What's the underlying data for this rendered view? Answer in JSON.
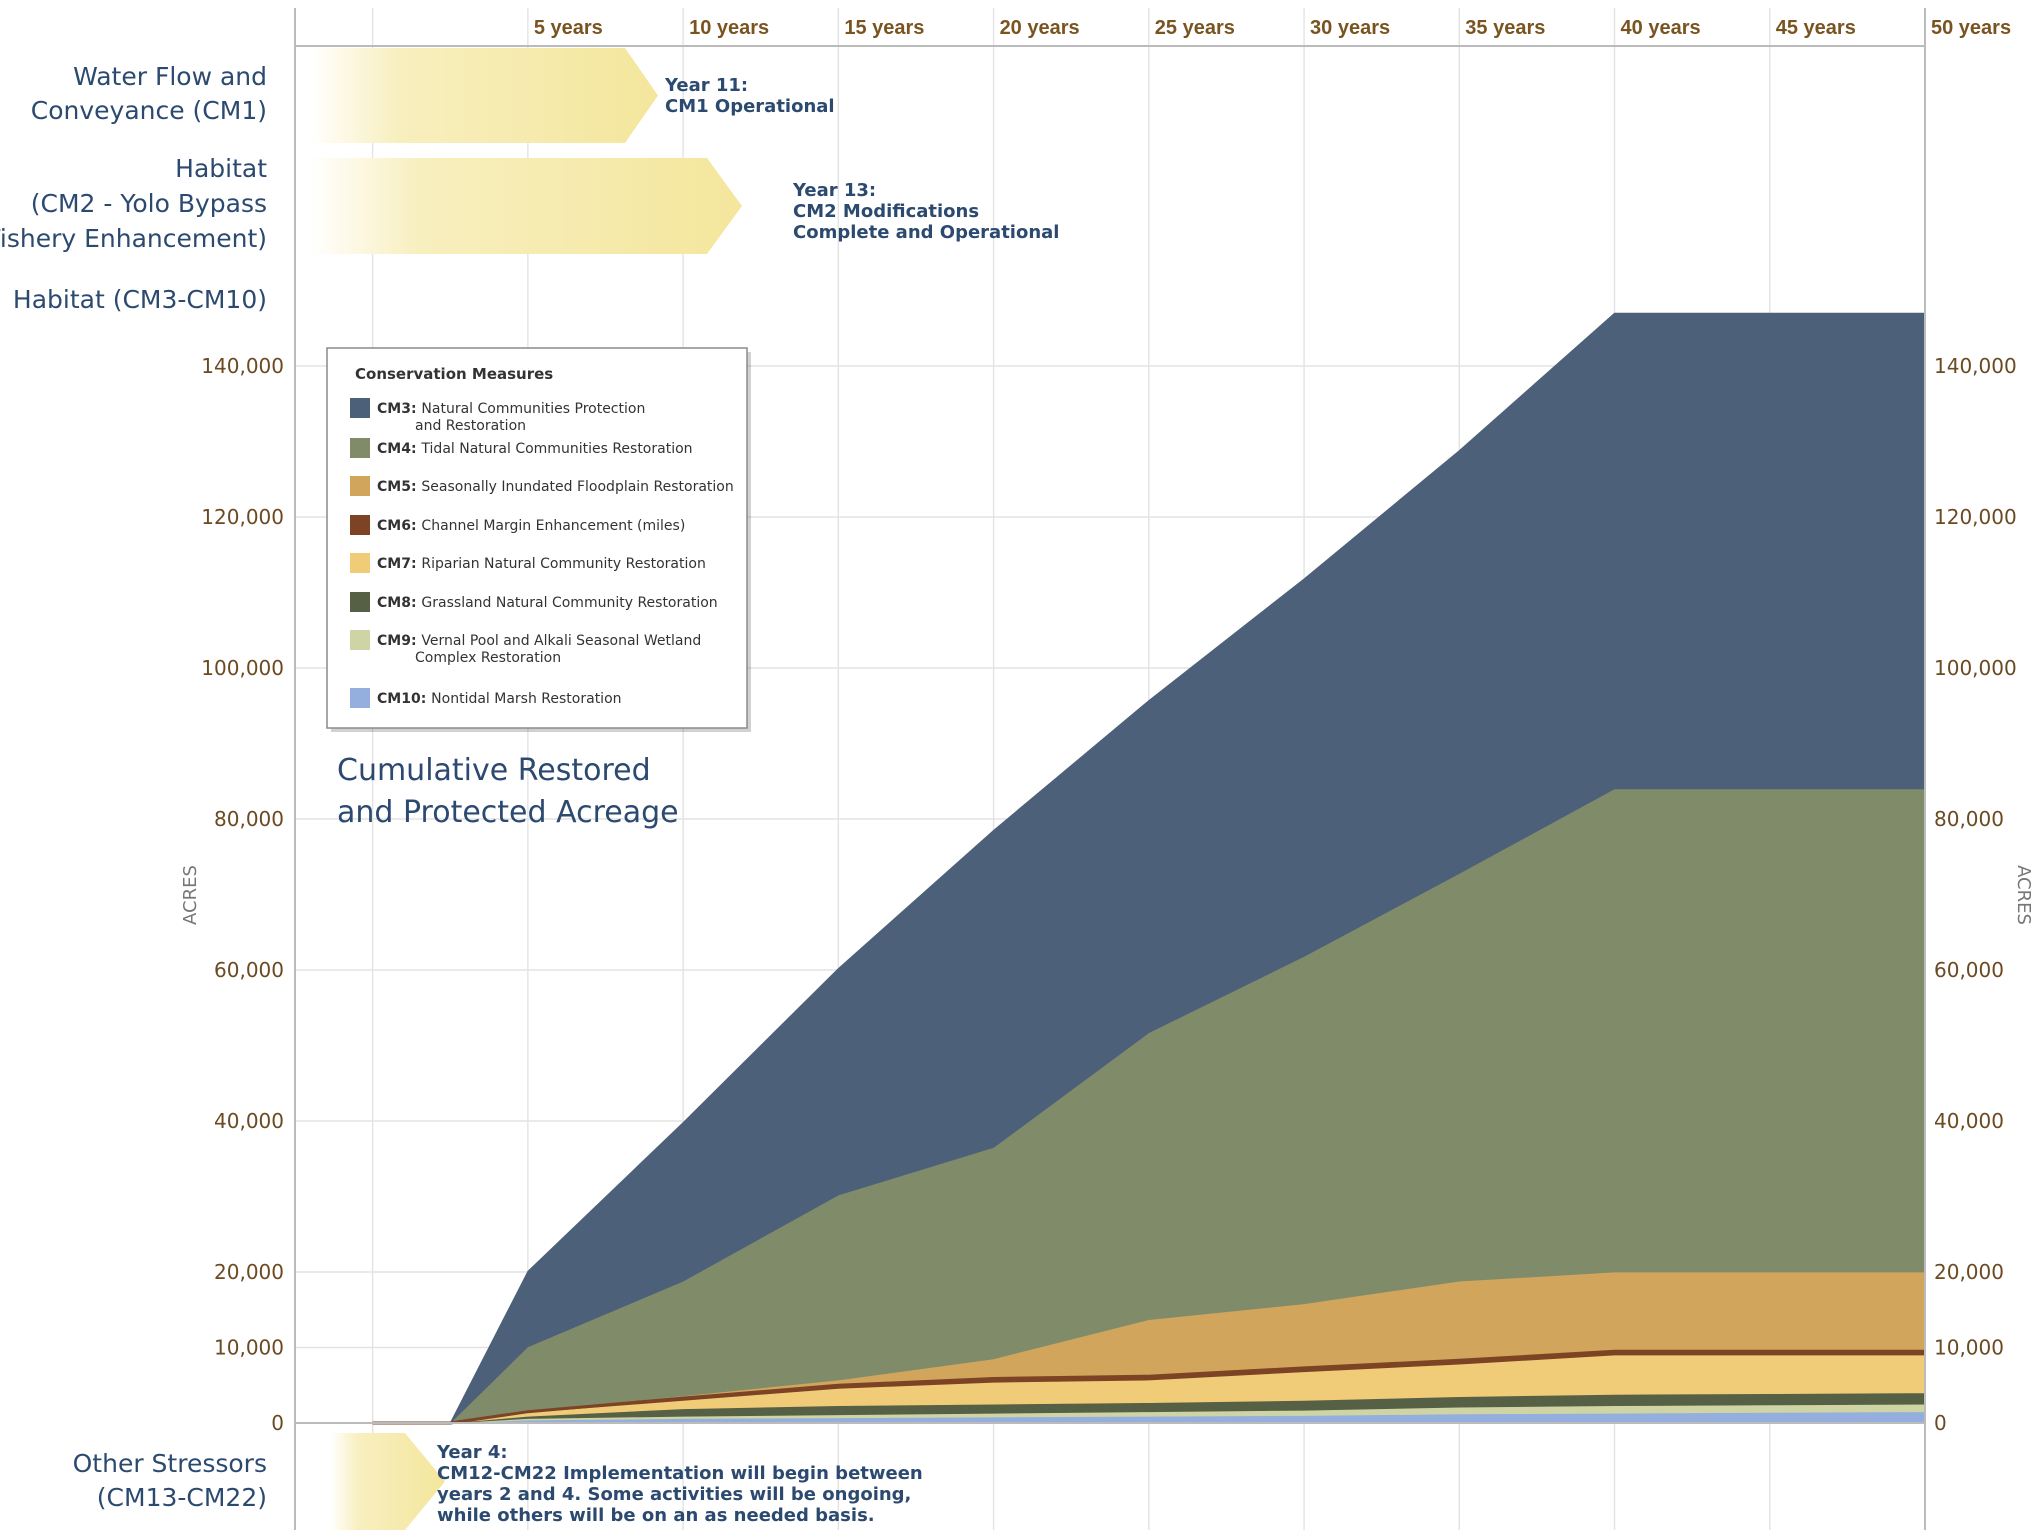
{
  "chart_data": {
    "type": "area",
    "stacked": true,
    "title": "Cumulative Restored and Protected Acreage",
    "title_lines": [
      "Cumulative Restored",
      "and Protected Acreage"
    ],
    "ylabel": "ACRES",
    "ylabel_right": "ACRES",
    "x_header_labels": [
      "5 years",
      "10 years",
      "15 years",
      "20 years",
      "25 years",
      "30 years",
      "35 years",
      "40 years",
      "45 years",
      "50 years"
    ],
    "x": [
      0,
      2.5,
      5,
      10,
      15,
      20,
      25,
      30,
      35,
      40,
      45,
      50
    ],
    "xlim": [
      -2.5,
      50
    ],
    "ylim": [
      0,
      150000
    ],
    "y_ticks": [
      0,
      10000,
      20000,
      40000,
      60000,
      80000,
      100000,
      120000,
      140000
    ],
    "y_tick_labels": [
      "0",
      "10,000",
      "20,000",
      "40,000",
      "60,000",
      "80,000",
      "100,000",
      "120,000",
      "140,000"
    ],
    "series": [
      {
        "name": "CM10",
        "color": "#94aede",
        "values": [
          0,
          0,
          400,
          600,
          700,
          800,
          900,
          1000,
          1200,
          1300,
          1400,
          1500
        ]
      },
      {
        "name": "CM9",
        "color": "#cfd4a4",
        "values": [
          0,
          0,
          200,
          300,
          400,
          500,
          600,
          700,
          900,
          1000,
          1000,
          1000
        ]
      },
      {
        "name": "CM8",
        "color": "#566045",
        "values": [
          0,
          0,
          300,
          1000,
          1200,
          1200,
          1200,
          1300,
          1400,
          1500,
          1500,
          1500
        ]
      },
      {
        "name": "CM7",
        "color": "#f0cc78",
        "values": [
          0,
          0,
          500,
          1100,
          2300,
          2900,
          3000,
          3800,
          4300,
          5200,
          5100,
          5000
        ]
      },
      {
        "name": "CM6",
        "color": "#7c4324",
        "values": [
          0,
          0,
          100,
          300,
          400,
          500,
          500,
          500,
          500,
          500,
          500,
          500
        ]
      },
      {
        "name": "CM5",
        "color": "#d1a65c",
        "values": [
          0,
          0,
          100,
          300,
          700,
          2600,
          7500,
          8500,
          10500,
          10500,
          10500,
          10500
        ]
      },
      {
        "name": "CM4",
        "color": "#808b6a",
        "values": [
          0,
          0,
          8500,
          15200,
          24500,
          28000,
          38000,
          46000,
          54000,
          64000,
          64000,
          64000
        ]
      },
      {
        "name": "CM3",
        "color": "#4d6079",
        "values": [
          0,
          0,
          10000,
          21000,
          30000,
          42000,
          44000,
          50000,
          56000,
          63000,
          63000,
          63000
        ]
      }
    ]
  },
  "rows": {
    "cm1": {
      "lines": [
        "Water Flow and",
        "Conveyance (CM1)"
      ],
      "note": [
        "Year 11:",
        "CM1 Operational"
      ]
    },
    "cm2": {
      "lines": [
        "Habitat",
        "(CM2 - Yolo Bypass",
        "Fishery Enhancement)"
      ],
      "note": [
        "Year 13:",
        "CM2 Modifications",
        "Complete and Operational"
      ]
    },
    "cm3": {
      "lines": [
        "Habitat (CM3-CM10)"
      ]
    },
    "other": {
      "lines": [
        "Other Stressors",
        "(CM13-CM22)"
      ],
      "note": [
        "Year 4:",
        "CM12-CM22 Implementation will begin between",
        "years 2 and 4. Some activities will be ongoing,",
        "while others will be on an as needed basis."
      ]
    }
  },
  "legend": {
    "title": "Conservation Measures",
    "items": [
      {
        "code": "CM3:",
        "lines": [
          "Natural Communities Protection",
          "and Restoration"
        ],
        "color": "#4d6079"
      },
      {
        "code": "CM4:",
        "lines": [
          "Tidal Natural Communities Restoration"
        ],
        "color": "#808b6a"
      },
      {
        "code": "CM5:",
        "lines": [
          "Seasonally Inundated Floodplain Restoration"
        ],
        "color": "#d1a65c"
      },
      {
        "code": "CM6:",
        "lines": [
          "Channel Margin Enhancement (miles)"
        ],
        "color": "#7c4324"
      },
      {
        "code": "CM7:",
        "lines": [
          "Riparian Natural Community Restoration"
        ],
        "color": "#f0cc78"
      },
      {
        "code": "CM8:",
        "lines": [
          "Grassland Natural Community Restoration"
        ],
        "color": "#566045"
      },
      {
        "code": "CM9:",
        "lines": [
          "Vernal Pool and Alkali Seasonal Wetland",
          "Complex Restoration"
        ],
        "color": "#cfd4a4"
      },
      {
        "code": "CM10:",
        "lines": [
          "Nontidal Marsh Restoration"
        ],
        "color": "#94aede"
      }
    ]
  },
  "colors": {
    "grid": "#e3e3e3",
    "axis": "#bbbbbb",
    "arrow_yellow": "#f6ecaa",
    "text_blue": "#2c4a70"
  }
}
